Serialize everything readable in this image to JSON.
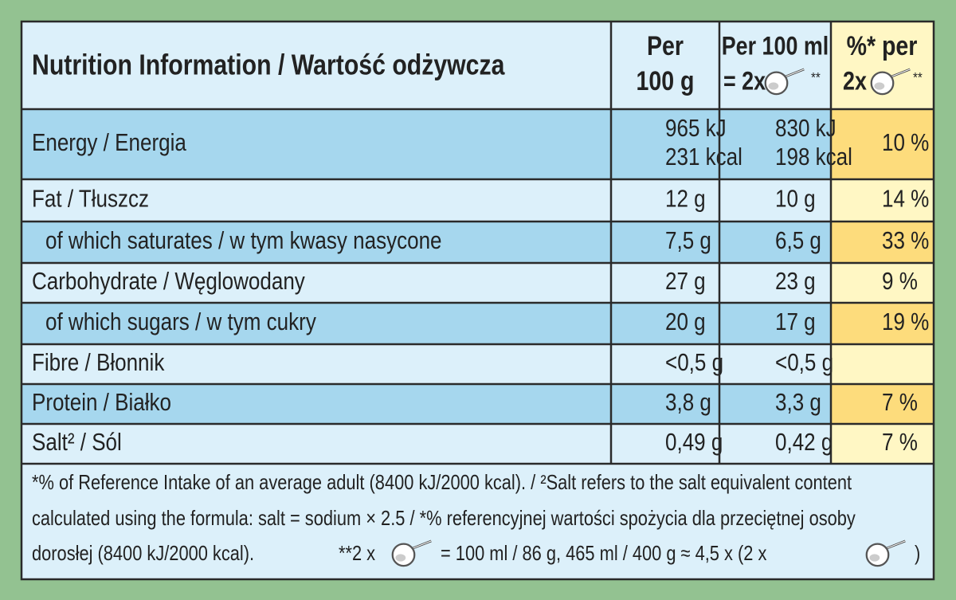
{
  "header": {
    "title": "Nutrition Information / Wartość odżywcza",
    "col1": [
      "Per",
      "100 g"
    ],
    "col2": [
      "Per 100 ml",
      "= 2x",
      "**"
    ],
    "col3": [
      "%* per",
      "2x",
      "**"
    ]
  },
  "rows": [
    {
      "label": "Energy / Energia",
      "per_100g": [
        "965 kJ",
        "231 kcal"
      ],
      "per_100ml": [
        "830 kJ",
        "198 kcal"
      ],
      "percent": "10 %"
    },
    {
      "label": "Fat / Tłuszcz",
      "per_100g": [
        "12 g"
      ],
      "per_100ml": [
        "10 g"
      ],
      "percent": "14 %"
    },
    {
      "label": "of which saturates / w tym kwasy nasycone",
      "per_100g": [
        "7,5 g"
      ],
      "per_100ml": [
        "6,5 g"
      ],
      "percent": "33 %"
    },
    {
      "label": "Carbohydrate / Węglowodany",
      "per_100g": [
        "27 g"
      ],
      "per_100ml": [
        "23 g"
      ],
      "percent": "9 %"
    },
    {
      "label": "of which sugars / w tym cukry",
      "per_100g": [
        "20 g"
      ],
      "per_100ml": [
        "17 g"
      ],
      "percent": "19 %"
    },
    {
      "label": "Fibre / Błonnik",
      "per_100g": [
        "<0,5 g"
      ],
      "per_100ml": [
        "<0,5 g"
      ]
    },
    {
      "label": "Protein / Białko",
      "per_100g": [
        "3,8 g"
      ],
      "per_100ml": [
        "3,3 g"
      ],
      "percent": "7 %"
    },
    {
      "label": "Salt² / Sól",
      "per_100g": [
        "0,49 g"
      ],
      "per_100ml": [
        "0,42 g"
      ],
      "percent": "7 %"
    }
  ],
  "footnote": {
    "line1": "*% of Reference Intake of an average adult (8400 kJ/2000 kcal). / ²Salt refers to the salt equivalent content",
    "line2": "calculated using the formula: salt = sodium × 2.5 / *% referencyjnej wartości spożycia dla przeciętnej osoby",
    "line3": [
      "dorosłej (8400 kJ/2000 kcal).",
      "**2 x",
      "= 100 ml / 86 g, 465 ml / 400 g ≈ 4,5 x (2 x",
      ")"
    ]
  }
}
